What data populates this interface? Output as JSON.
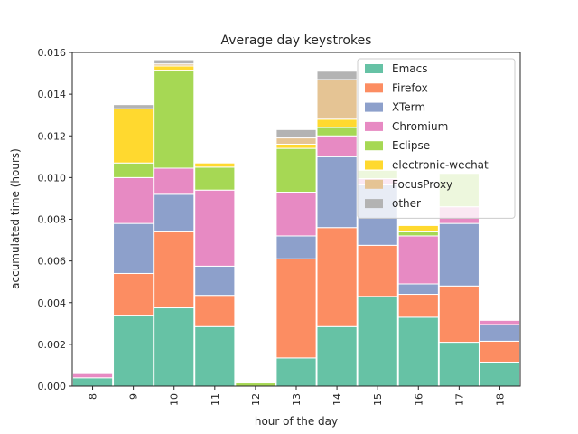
{
  "chart_data": {
    "type": "bar",
    "stacked": true,
    "title": "Average day keystrokes",
    "xlabel": "hour of the day",
    "ylabel": "accumulated time (hours)",
    "ylim": [
      0,
      0.016
    ],
    "yticks": [
      "0.000",
      "0.002",
      "0.004",
      "0.006",
      "0.008",
      "0.010",
      "0.012",
      "0.014",
      "0.016"
    ],
    "categories": [
      "8",
      "9",
      "10",
      "11",
      "12",
      "13",
      "14",
      "15",
      "16",
      "17",
      "18"
    ],
    "grid": false,
    "legend_position": "top-right",
    "series": [
      {
        "name": "Emacs",
        "color": "#66c2a5",
        "values": [
          0.0004,
          0.0034,
          0.00375,
          0.00285,
          0.0,
          0.00135,
          0.00285,
          0.0043,
          0.0033,
          0.0021,
          0.00115
        ]
      },
      {
        "name": "Firefox",
        "color": "#fc8d62",
        "values": [
          0.0,
          0.002,
          0.00365,
          0.0015,
          0.0,
          0.00475,
          0.00475,
          0.00245,
          0.0011,
          0.0027,
          0.001
        ]
      },
      {
        "name": "XTerm",
        "color": "#8da0cb",
        "values": [
          0.0,
          0.0024,
          0.0018,
          0.0014,
          0.0,
          0.0011,
          0.0034,
          0.0029,
          0.0005,
          0.003,
          0.0008
        ]
      },
      {
        "name": "Chromium",
        "color": "#e78ac3",
        "values": [
          0.0002,
          0.0022,
          0.00125,
          0.00365,
          0.0,
          0.0021,
          0.001,
          0.0003,
          0.0023,
          0.0008,
          0.0002
        ]
      },
      {
        "name": "Eclipse",
        "color": "#a6d854",
        "values": [
          0.0,
          0.0007,
          0.0047,
          0.0011,
          0.00015,
          0.0021,
          0.0004,
          0.0004,
          0.0002,
          0.0016,
          0.0
        ]
      },
      {
        "name": "electronic-wechat",
        "color": "#ffd92f",
        "values": [
          0.0,
          0.0026,
          0.0002,
          0.0002,
          0.0,
          0.0002,
          0.0004,
          0.0,
          0.0003,
          0.0,
          0.0
        ]
      },
      {
        "name": "FocusProxy",
        "color": "#e5c494",
        "values": [
          0.0,
          0.0,
          0.0001,
          0.0,
          0.0,
          0.0003,
          0.0019,
          0.0,
          0.0,
          0.0,
          0.0
        ]
      },
      {
        "name": "other",
        "color": "#b3b3b3",
        "values": [
          0.0,
          0.0002,
          0.0002,
          0.0,
          0.0,
          0.0004,
          0.0004,
          0.0,
          0.0,
          0.0,
          0.0
        ]
      }
    ]
  }
}
